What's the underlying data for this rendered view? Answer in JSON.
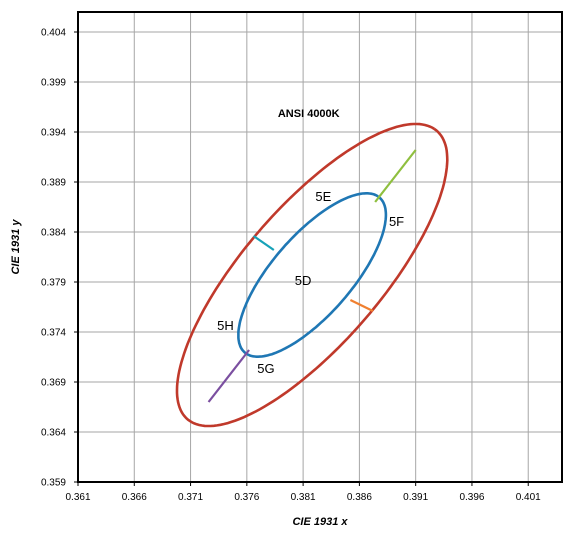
{
  "chart_data": {
    "type": "scatter",
    "title": "",
    "xlabel": "CIE 1931 x",
    "ylabel": "CIE 1931 y",
    "xlim": [
      0.361,
      0.404
    ],
    "ylim": [
      0.359,
      0.406
    ],
    "x_ticks": [
      "0.361",
      "0.366",
      "0.371",
      "0.376",
      "0.381",
      "0.386",
      "0.391",
      "0.396",
      "0.401"
    ],
    "y_ticks": [
      "0.359",
      "0.364",
      "0.369",
      "0.374",
      "0.379",
      "0.384",
      "0.389",
      "0.394",
      "0.399",
      "0.404"
    ],
    "grid": true,
    "annotation": "ANSI 4000K",
    "annotation_at": [
      0.3815,
      0.3955
    ],
    "ellipses": [
      {
        "label_ref": "outer",
        "cx": 0.3818,
        "cy": 0.3797,
        "a": 0.0182,
        "b": 0.0064,
        "angle_deg": 53.4,
        "color": "#c0392b"
      },
      {
        "label_ref": "inner",
        "cx": 0.3818,
        "cy": 0.3797,
        "a": 0.0098,
        "b": 0.0037,
        "angle_deg": 53.4,
        "color": "#1f77b4"
      }
    ],
    "dividers": [
      {
        "from": [
          0.3874,
          0.387
        ],
        "to": [
          0.391,
          0.3922
        ],
        "color": "#8fbf3f"
      },
      {
        "from": [
          0.3784,
          0.3822
        ],
        "to": [
          0.3766,
          0.3836
        ],
        "color": "#17a2b8"
      },
      {
        "from": [
          0.3852,
          0.3772
        ],
        "to": [
          0.3872,
          0.3761
        ],
        "color": "#f08030"
      },
      {
        "from": [
          0.3762,
          0.3722
        ],
        "to": [
          0.3726,
          0.367
        ],
        "color": "#7b4fa0"
      }
    ],
    "regions": [
      {
        "label": "5D",
        "x": 0.381,
        "y": 0.3787
      },
      {
        "label": "5E",
        "x": 0.3828,
        "y": 0.3871
      },
      {
        "label": "5F",
        "x": 0.3893,
        "y": 0.3846
      },
      {
        "label": "5G",
        "x": 0.3777,
        "y": 0.3699
      },
      {
        "label": "5H",
        "x": 0.3741,
        "y": 0.3742
      }
    ]
  }
}
